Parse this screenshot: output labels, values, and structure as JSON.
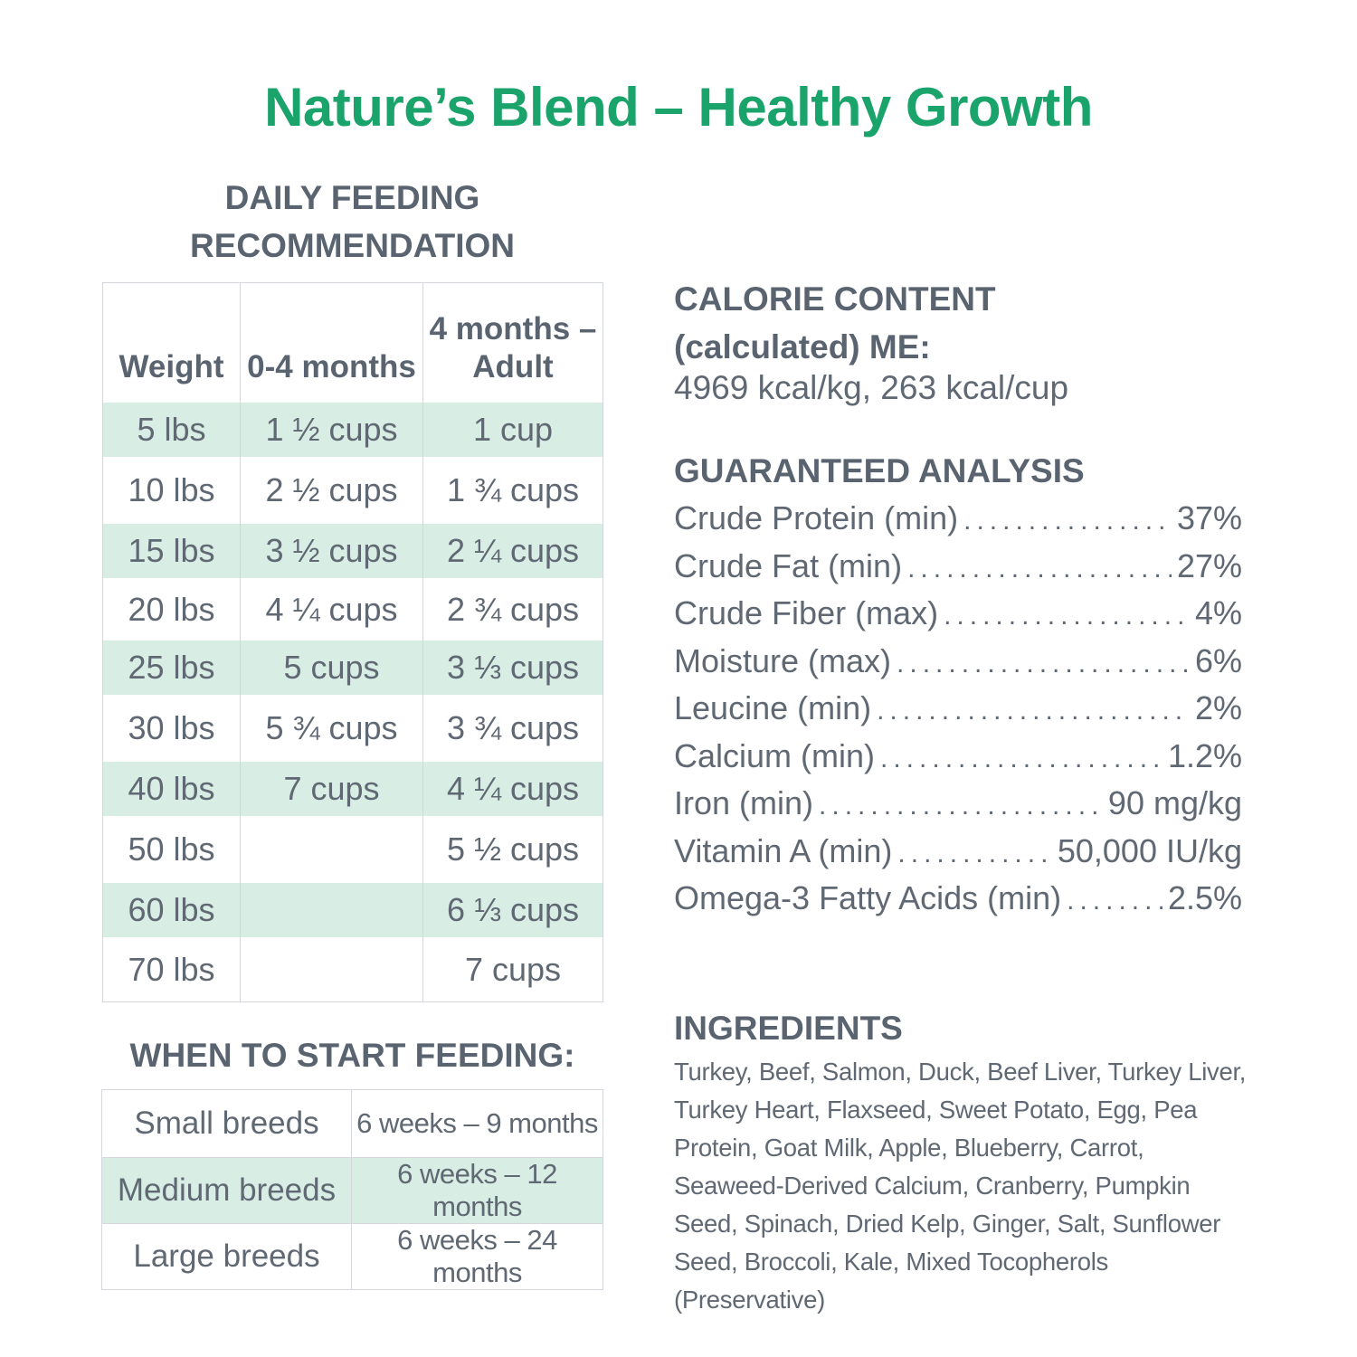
{
  "title": "Nature’s Blend – Healthy Growth",
  "feeding": {
    "heading_line1": "DAILY FEEDING",
    "heading_line2": "RECOMMENDATION",
    "columns": [
      "Weight",
      "0-4 months",
      "4 months –",
      "Adult"
    ],
    "rows": [
      {
        "weight": "5 lbs",
        "young": "1 ½ cups",
        "adult": "1  cup"
      },
      {
        "weight": "10 lbs",
        "young": "2 ½ cups",
        "adult": "1 ¾ cups"
      },
      {
        "weight": "15 lbs",
        "young": "3 ½ cups",
        "adult": "2 ¼ cups"
      },
      {
        "weight": "20 lbs",
        "young": "4 ¼ cups",
        "adult": "2 ¾ cups"
      },
      {
        "weight": "25 lbs",
        "young": "5 cups",
        "adult": "3 ⅓ cups"
      },
      {
        "weight": "30 lbs",
        "young": "5 ¾ cups",
        "adult": "3 ¾ cups"
      },
      {
        "weight": "40 lbs",
        "young": "7 cups",
        "adult": "4 ¼ cups"
      },
      {
        "weight": "50 lbs",
        "young": "",
        "adult": "5 ½ cups"
      },
      {
        "weight": "60 lbs",
        "young": "",
        "adult": "6 ⅓ cups"
      },
      {
        "weight": "70 lbs",
        "young": "",
        "adult": "7 cups"
      }
    ]
  },
  "start": {
    "heading": "WHEN TO START FEEDING:",
    "rows": [
      {
        "breed": "Small breeds",
        "age": "6 weeks – 9 months"
      },
      {
        "breed": "Medium breeds",
        "age": "6 weeks – 12 months"
      },
      {
        "breed": "Large breeds",
        "age": "6 weeks – 24 months"
      }
    ]
  },
  "calorie": {
    "heading_line1": "CALORIE CONTENT",
    "heading_line2": "(calculated) ME:",
    "value": "4969 kcal/kg, 263 kcal/cup"
  },
  "analysis": {
    "heading": "GUARANTEED ANALYSIS",
    "items": [
      {
        "label": "Crude Protein (min)",
        "value": "37%"
      },
      {
        "label": "Crude Fat (min)",
        "value": "27%"
      },
      {
        "label": "Crude Fiber (max)",
        "value": "4%"
      },
      {
        "label": "Moisture (max)",
        "value": "6%"
      },
      {
        "label": "Leucine (min)",
        "value": "2%"
      },
      {
        "label": "Calcium (min)",
        "value": "1.2%"
      },
      {
        "label": "Iron (min)",
        "value": "90 mg/kg"
      },
      {
        "label": "Vitamin A (min)",
        "value": "50,000 IU/kg"
      },
      {
        "label": "Omega-3 Fatty Acids (min)",
        "value": "2.5%"
      }
    ]
  },
  "ingredients": {
    "heading": "INGREDIENTS",
    "text": "Turkey, Beef, Salmon, Duck, Beef Liver, Turkey Liver, Turkey Heart, Flaxseed, Sweet Potato, Egg, Pea Protein, Goat Milk, Apple, Blueberry, Carrot, Seaweed-Derived Calcium, Cranberry, Pumpkin Seed, Spinach, Dried Kelp, Ginger, Salt, Sunflower Seed, Broccoli, Kale, Mixed Tocopherols (Preservative)"
  },
  "colors": {
    "title_green": "#1aa36a",
    "row_tint": "#d8ede3",
    "heading_gray": "#5a6470",
    "text_gray": "#5f6873"
  }
}
